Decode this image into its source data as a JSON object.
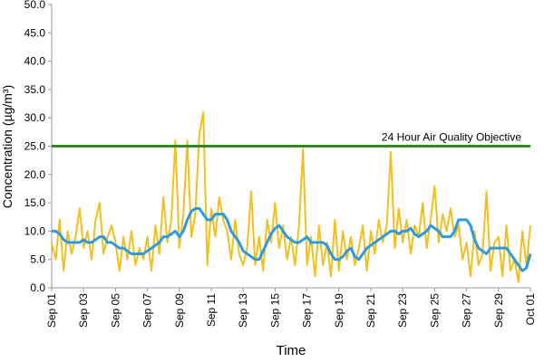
{
  "chart_data": {
    "type": "line",
    "x_label": "Time",
    "y_label": "Concentration (µg/m³)",
    "x": [
      0,
      0.25,
      0.5,
      0.75,
      1,
      1.25,
      1.5,
      1.75,
      2,
      2.25,
      2.5,
      2.75,
      3,
      3.25,
      3.5,
      3.75,
      4,
      4.25,
      4.5,
      4.75,
      5,
      5.25,
      5.5,
      5.75,
      6,
      6.25,
      6.5,
      6.75,
      7,
      7.25,
      7.5,
      7.75,
      8,
      8.25,
      8.5,
      8.75,
      9,
      9.25,
      9.5,
      9.75,
      10,
      10.25,
      10.5,
      10.75,
      11,
      11.25,
      11.5,
      11.75,
      12,
      12.25,
      12.5,
      12.75,
      13,
      13.25,
      13.5,
      13.75,
      14,
      14.25,
      14.5,
      14.75,
      15,
      15.25,
      15.5,
      15.75,
      16,
      16.25,
      16.5,
      16.75,
      17,
      17.25,
      17.5,
      17.75,
      18,
      18.25,
      18.5,
      18.75,
      19,
      19.25,
      19.5,
      19.75,
      20,
      20.25,
      20.5,
      20.75,
      21,
      21.25,
      21.5,
      21.75,
      22,
      22.25,
      22.5,
      22.75,
      23,
      23.25,
      23.5,
      23.75,
      24,
      24.25,
      24.5,
      24.75,
      25,
      25.25,
      25.5,
      25.75,
      26,
      26.25,
      26.5,
      26.75,
      27,
      27.25,
      27.5,
      27.75,
      28,
      28.25,
      28.5,
      28.75,
      29,
      29.25,
      29.5,
      29.75,
      30
    ],
    "series": [
      {
        "color": "#f2c01e",
        "width": 2,
        "values": [
          8,
          5,
          12,
          3,
          10,
          6,
          9,
          14,
          7,
          10,
          5,
          12,
          15,
          6,
          9,
          11,
          8,
          3,
          9,
          5,
          10,
          4,
          7,
          5,
          9,
          3,
          11,
          6,
          16,
          8,
          12,
          26,
          7,
          13,
          26,
          9,
          13,
          27,
          31,
          4,
          14,
          9,
          16,
          12,
          10,
          5,
          12,
          6,
          4,
          7,
          17,
          4,
          9,
          3,
          12,
          8,
          15,
          7,
          11,
          5,
          9,
          4,
          11,
          24.5,
          4,
          9,
          2,
          11,
          4,
          8,
          2,
          12,
          3,
          10,
          5,
          9,
          4,
          7,
          11,
          3,
          10,
          6,
          12,
          8,
          11,
          24,
          7,
          14,
          8,
          12,
          6,
          11,
          9,
          15,
          7,
          12,
          18,
          8,
          13,
          10,
          14,
          9,
          11,
          5,
          8,
          2,
          10,
          4,
          6,
          17,
          3,
          8,
          9,
          2,
          11,
          3,
          5,
          1,
          10,
          4,
          11
        ]
      },
      {
        "color": "#2e9be0",
        "width": 3,
        "values": [
          10,
          10,
          9.5,
          8.5,
          8,
          8,
          8,
          8,
          8.5,
          8,
          8,
          8.5,
          9,
          9,
          8,
          8,
          7.5,
          7,
          7,
          6.5,
          6,
          6,
          6,
          6,
          6.5,
          7,
          7.5,
          8,
          9,
          9,
          9.5,
          10,
          9,
          10,
          12,
          13.5,
          14,
          14,
          13,
          12,
          12,
          13,
          13,
          13,
          12,
          10,
          9,
          8,
          6.5,
          6,
          5.5,
          5,
          5,
          6.5,
          8,
          9.5,
          10.5,
          11,
          10,
          9,
          8.5,
          8,
          8,
          8.5,
          9,
          8,
          8,
          8,
          8,
          7.5,
          6,
          5,
          5,
          5.5,
          6.5,
          7,
          5.5,
          5,
          6,
          7,
          7.5,
          8,
          8.5,
          9,
          9.5,
          10,
          10,
          9.5,
          10,
          10,
          10.5,
          9.5,
          9,
          9.5,
          10,
          11,
          10.5,
          10,
          9,
          9,
          9,
          10,
          12,
          12,
          12,
          11,
          8.5,
          7,
          6.5,
          6,
          7,
          7,
          7,
          7,
          7,
          6,
          5,
          4,
          3,
          3.5,
          6
        ]
      }
    ],
    "reference_line": {
      "value": 25,
      "label": "24 Hour Air Quality Objective",
      "color": "#2e8b1e"
    },
    "xlim": [
      0,
      30
    ],
    "xticks": [
      {
        "value": 0,
        "label": "Sep 01"
      },
      {
        "value": 2,
        "label": "Sep 03"
      },
      {
        "value": 4,
        "label": "Sep 05"
      },
      {
        "value": 6,
        "label": "Sep 07"
      },
      {
        "value": 8,
        "label": "Sep 09"
      },
      {
        "value": 10,
        "label": "Sep 11"
      },
      {
        "value": 12,
        "label": "Sep 13"
      },
      {
        "value": 14,
        "label": "Sep 15"
      },
      {
        "value": 16,
        "label": "Sep 17"
      },
      {
        "value": 18,
        "label": "Sep 19"
      },
      {
        "value": 20,
        "label": "Sep 21"
      },
      {
        "value": 22,
        "label": "Sep 23"
      },
      {
        "value": 24,
        "label": "Sep 25"
      },
      {
        "value": 26,
        "label": "Sep 27"
      },
      {
        "value": 28,
        "label": "Sep 29"
      },
      {
        "value": 30,
        "label": "Oct 01"
      }
    ],
    "ylim": [
      0,
      50
    ],
    "yticks": [
      {
        "value": 0,
        "label": "0.0"
      },
      {
        "value": 5,
        "label": "5.0"
      },
      {
        "value": 10,
        "label": "10.0"
      },
      {
        "value": 15,
        "label": "15.0"
      },
      {
        "value": 20,
        "label": "20.0"
      },
      {
        "value": 25,
        "label": "25.0"
      },
      {
        "value": 30,
        "label": "30.0"
      },
      {
        "value": 35,
        "label": "35.0"
      },
      {
        "value": 40,
        "label": "40.0"
      },
      {
        "value": 45,
        "label": "45.0"
      },
      {
        "value": 50,
        "label": "50.0"
      }
    ]
  }
}
